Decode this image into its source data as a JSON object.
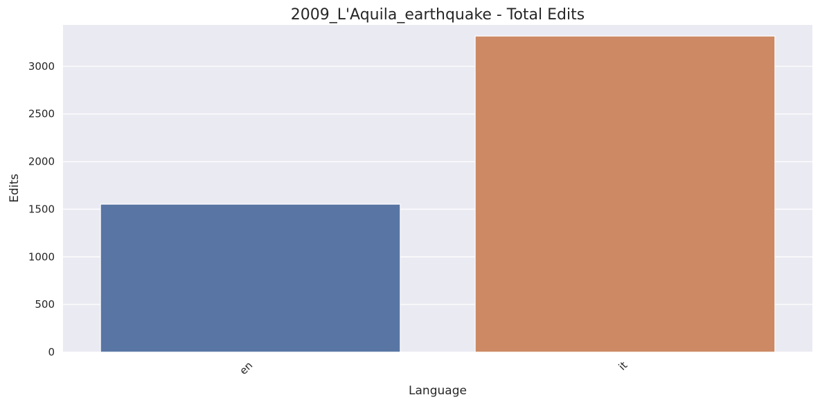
{
  "chart_data": {
    "type": "bar",
    "title": "2009_L'Aquila_earthquake - Total Edits",
    "xlabel": "Language",
    "ylabel": "Edits",
    "categories": [
      "en",
      "it"
    ],
    "values": [
      1553,
      3318
    ],
    "colors": [
      "#5875a4",
      "#cc8963"
    ],
    "ylim": [
      0,
      3435
    ],
    "yticks": [
      0,
      500,
      1000,
      1500,
      2000,
      2500,
      3000
    ],
    "grid": true,
    "background": "#eaeaf2"
  }
}
